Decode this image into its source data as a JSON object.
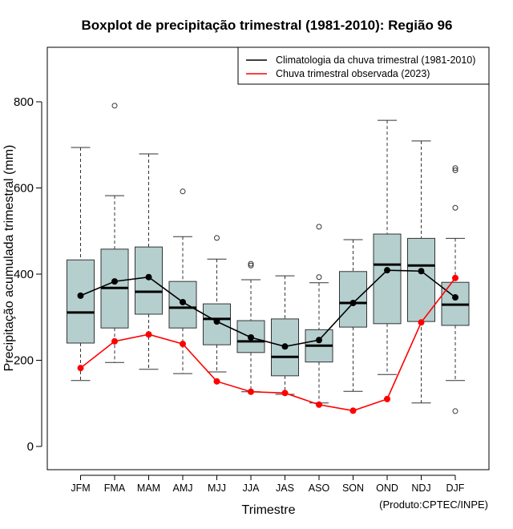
{
  "chart_data": {
    "type": "boxplot",
    "title": "Boxplot de precipitação trimestral (1981-2010): Região 96",
    "xlabel": "Trimestre",
    "ylabel": "Precipitação acumulada trimestral (mm)",
    "ylim": [
      -55,
      925
    ],
    "yticks": [
      0,
      200,
      400,
      600,
      800
    ],
    "grid": false,
    "legend_position": "top-right",
    "credit": "(Produto:CPTEC/INPE)",
    "categories": [
      "JFM",
      "FMA",
      "MAM",
      "AMJ",
      "MJJ",
      "JJA",
      "JAS",
      "ASO",
      "SON",
      "OND",
      "NDJ",
      "DJF"
    ],
    "boxes": [
      {
        "low": 153,
        "q1": 240,
        "median": 311,
        "q3": 433,
        "high": 694,
        "outliers": []
      },
      {
        "low": 195,
        "q1": 275,
        "median": 368,
        "q3": 458,
        "high": 582,
        "outliers": [
          791
        ]
      },
      {
        "low": 179,
        "q1": 307,
        "median": 359,
        "q3": 463,
        "high": 679,
        "outliers": []
      },
      {
        "low": 169,
        "q1": 275,
        "median": 322,
        "q3": 383,
        "high": 487,
        "outliers": [
          592
        ]
      },
      {
        "low": 173,
        "q1": 236,
        "median": 296,
        "q3": 331,
        "high": 435,
        "outliers": [
          484
        ]
      },
      {
        "low": 127,
        "q1": 218,
        "median": 244,
        "q3": 292,
        "high": 387,
        "outliers": [
          420,
          424
        ]
      },
      {
        "low": 121,
        "q1": 164,
        "median": 208,
        "q3": 296,
        "high": 396,
        "outliers": []
      },
      {
        "low": 101,
        "q1": 196,
        "median": 234,
        "q3": 271,
        "high": 380,
        "outliers": [
          393,
          510
        ]
      },
      {
        "low": 128,
        "q1": 277,
        "median": 333,
        "q3": 406,
        "high": 480,
        "outliers": []
      },
      {
        "low": 167,
        "q1": 285,
        "median": 422,
        "q3": 493,
        "high": 757,
        "outliers": []
      },
      {
        "low": 101,
        "q1": 290,
        "median": 420,
        "q3": 483,
        "high": 709,
        "outliers": []
      },
      {
        "low": 153,
        "q1": 281,
        "median": 329,
        "q3": 381,
        "high": 483,
        "outliers": [
          82,
          554,
          641,
          646
        ]
      }
    ],
    "series": [
      {
        "name": "Climatologia da chuva trimestral (1981-2010)",
        "color": "#000000",
        "values": [
          350,
          383,
          393,
          335,
          290,
          253,
          232,
          247,
          333,
          409,
          407,
          346
        ]
      },
      {
        "name": "Chuva trimestral observada (2023)",
        "color": "#ff0000",
        "values": [
          182,
          244,
          260,
          238,
          151,
          127,
          124,
          97,
          83,
          110,
          288,
          391
        ]
      }
    ],
    "box_fill": "#b5cfcf"
  }
}
